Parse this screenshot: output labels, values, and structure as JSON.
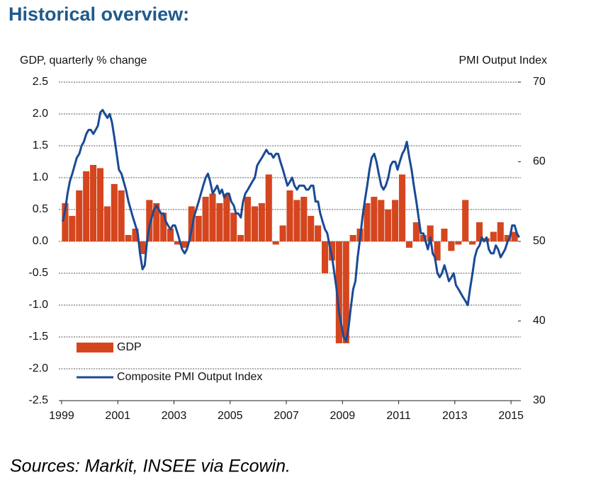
{
  "chart_data": {
    "type": "combo",
    "title": "Historical overview:",
    "y_label": "GDP, quarterly % change",
    "y2_label": "PMI Output Index",
    "source": "Sources: Markit, INSEE via Ecowin.",
    "xlim": [
      1998.9,
      2015.35
    ],
    "xticks": [
      1999,
      2001,
      2003,
      2005,
      2007,
      2009,
      2011,
      2013,
      2015
    ],
    "ylim": [
      -2.5,
      2.5
    ],
    "yticks": [
      2.5,
      {
        "value": 2,
        "label": "2.0"
      },
      1.5,
      {
        "value": 1,
        "label": "1.0"
      },
      0.5,
      {
        "value": 0,
        "label": "0.0"
      },
      -0.5,
      {
        "value": -1,
        "label": "-1.0"
      },
      -1.5,
      {
        "value": -2,
        "label": "-2.0"
      },
      -2.5
    ],
    "y2lim": [
      30,
      70
    ],
    "y2ticks": [
      30,
      40,
      50,
      60,
      70
    ],
    "grid": true,
    "legend": "lower left",
    "series": [
      {
        "name": "GDP",
        "type": "bar",
        "color": "#d5461e",
        "x": [
          1999.125,
          1999.375,
          1999.625,
          1999.875,
          2000.125,
          2000.375,
          2000.625,
          2000.875,
          2001.125,
          2001.375,
          2001.625,
          2001.875,
          2002.125,
          2002.375,
          2002.625,
          2002.875,
          2003.125,
          2003.375,
          2003.625,
          2003.875,
          2004.125,
          2004.375,
          2004.625,
          2004.875,
          2005.125,
          2005.375,
          2005.625,
          2005.875,
          2006.125,
          2006.375,
          2006.625,
          2006.875,
          2007.125,
          2007.375,
          2007.625,
          2007.875,
          2008.125,
          2008.375,
          2008.625,
          2008.875,
          2009.125,
          2009.375,
          2009.625,
          2009.875,
          2010.125,
          2010.375,
          2010.625,
          2010.875,
          2011.125,
          2011.375,
          2011.625,
          2011.875,
          2012.125,
          2012.375,
          2012.625,
          2012.875,
          2013.125,
          2013.375,
          2013.625,
          2013.875,
          2014.125,
          2014.375,
          2014.625,
          2014.875,
          2015.125
        ],
        "values": [
          0.6,
          0.4,
          0.8,
          1.1,
          1.2,
          1.15,
          0.55,
          0.9,
          0.8,
          0.1,
          0.2,
          -0.2,
          0.65,
          0.6,
          0.45,
          0.2,
          -0.05,
          -0.1,
          0.55,
          0.4,
          0.7,
          0.75,
          0.6,
          0.75,
          0.45,
          0.1,
          0.7,
          0.55,
          0.6,
          1.05,
          -0.05,
          0.25,
          0.8,
          0.65,
          0.7,
          0.4,
          0.25,
          -0.5,
          -0.3,
          -1.6,
          -1.6,
          0.1,
          0.2,
          0.6,
          0.7,
          0.65,
          0.5,
          0.65,
          1.05,
          -0.1,
          0.3,
          0.1,
          0.25,
          -0.3,
          0.2,
          -0.15,
          -0.05,
          0.65,
          -0.05,
          0.3,
          0.05,
          0.15,
          0.3,
          0.1,
          0.15
        ]
      },
      {
        "name": "Composite PMI Output Index",
        "type": "line",
        "axis": "y2",
        "color": "#1a4a94",
        "x": [
          1999.04,
          1999.13,
          1999.21,
          1999.29,
          1999.38,
          1999.46,
          1999.54,
          1999.63,
          1999.71,
          1999.79,
          1999.88,
          1999.96,
          2000.04,
          2000.13,
          2000.21,
          2000.29,
          2000.38,
          2000.46,
          2000.54,
          2000.63,
          2000.71,
          2000.79,
          2000.88,
          2000.96,
          2001.04,
          2001.13,
          2001.21,
          2001.29,
          2001.38,
          2001.46,
          2001.54,
          2001.63,
          2001.71,
          2001.79,
          2001.88,
          2001.96,
          2002.04,
          2002.13,
          2002.21,
          2002.29,
          2002.38,
          2002.46,
          2002.54,
          2002.63,
          2002.71,
          2002.79,
          2002.88,
          2002.96,
          2003.04,
          2003.13,
          2003.21,
          2003.29,
          2003.38,
          2003.46,
          2003.54,
          2003.63,
          2003.71,
          2003.79,
          2003.88,
          2003.96,
          2004.04,
          2004.13,
          2004.21,
          2004.29,
          2004.38,
          2004.46,
          2004.54,
          2004.63,
          2004.71,
          2004.79,
          2004.88,
          2004.96,
          2005.04,
          2005.13,
          2005.21,
          2005.29,
          2005.38,
          2005.46,
          2005.54,
          2005.63,
          2005.71,
          2005.79,
          2005.88,
          2005.96,
          2006.04,
          2006.13,
          2006.21,
          2006.29,
          2006.38,
          2006.46,
          2006.54,
          2006.63,
          2006.71,
          2006.79,
          2006.88,
          2006.96,
          2007.04,
          2007.13,
          2007.21,
          2007.29,
          2007.38,
          2007.46,
          2007.54,
          2007.63,
          2007.71,
          2007.79,
          2007.88,
          2007.96,
          2008.04,
          2008.13,
          2008.21,
          2008.29,
          2008.38,
          2008.46,
          2008.54,
          2008.63,
          2008.71,
          2008.79,
          2008.88,
          2008.96,
          2009.04,
          2009.13,
          2009.21,
          2009.29,
          2009.38,
          2009.46,
          2009.54,
          2009.63,
          2009.71,
          2009.79,
          2009.88,
          2009.96,
          2010.04,
          2010.13,
          2010.21,
          2010.29,
          2010.38,
          2010.46,
          2010.54,
          2010.63,
          2010.71,
          2010.79,
          2010.88,
          2010.96,
          2011.04,
          2011.13,
          2011.21,
          2011.29,
          2011.38,
          2011.46,
          2011.54,
          2011.63,
          2011.71,
          2011.79,
          2011.88,
          2011.96,
          2012.04,
          2012.13,
          2012.21,
          2012.29,
          2012.38,
          2012.46,
          2012.54,
          2012.63,
          2012.71,
          2012.79,
          2012.88,
          2012.96,
          2013.04,
          2013.13,
          2013.21,
          2013.29,
          2013.38,
          2013.46,
          2013.54,
          2013.63,
          2013.71,
          2013.79,
          2013.88,
          2013.96,
          2014.04,
          2014.13,
          2014.21,
          2014.29,
          2014.38,
          2014.46,
          2014.54,
          2014.63,
          2014.71,
          2014.79,
          2014.88,
          2014.96,
          2015.04,
          2015.13,
          2015.21,
          2015.29
        ],
        "values": [
          52.5,
          54,
          56,
          57.5,
          58.5,
          59.5,
          60.5,
          61,
          62,
          62.5,
          63.5,
          64,
          64,
          63.5,
          64,
          64.5,
          66.2,
          66.5,
          66,
          65.5,
          66,
          65,
          63,
          61,
          59,
          58.5,
          57.5,
          56.5,
          55,
          54,
          53,
          52,
          51,
          48.5,
          46.5,
          47,
          50,
          52,
          53,
          54,
          54.5,
          54,
          53.5,
          53.5,
          52.5,
          52,
          51.5,
          52,
          52,
          51,
          50,
          49,
          48.5,
          49,
          50,
          51.5,
          53,
          54,
          55,
          56,
          57,
          58,
          58.5,
          57.5,
          56,
          56.5,
          57,
          56,
          56.5,
          55.5,
          56,
          56,
          55,
          54.5,
          53.5,
          53.5,
          53,
          55,
          56,
          56.5,
          57,
          57.5,
          58,
          59.5,
          60,
          60.5,
          61,
          61.5,
          61,
          61,
          60.5,
          61,
          61,
          60,
          59,
          58,
          57,
          57.5,
          58,
          57,
          56.5,
          57,
          57,
          57,
          56.5,
          56.5,
          57,
          57,
          55,
          55,
          53.5,
          52.5,
          51.5,
          51,
          49.5,
          48,
          46,
          44,
          41,
          39.5,
          38,
          37.5,
          39,
          41.5,
          44,
          45,
          48,
          50.5,
          53,
          55,
          57,
          59,
          60.5,
          61,
          60,
          58.5,
          57,
          56.5,
          57,
          58,
          59.5,
          60,
          60,
          59,
          60,
          61,
          61.5,
          62.5,
          60.5,
          59,
          57,
          55,
          53,
          51,
          51,
          50,
          49,
          50.5,
          48.5,
          48,
          46,
          45.5,
          46,
          47,
          46,
          45,
          45.5,
          46,
          44.5,
          44,
          43.5,
          43,
          42.5,
          42,
          44,
          46,
          48,
          49,
          49.5,
          50.5,
          50,
          50.5,
          49,
          48.5,
          48.5,
          49.5,
          49,
          48,
          48.5,
          49,
          50,
          50.5,
          52,
          52,
          51,
          50.5
        ]
      }
    ]
  }
}
